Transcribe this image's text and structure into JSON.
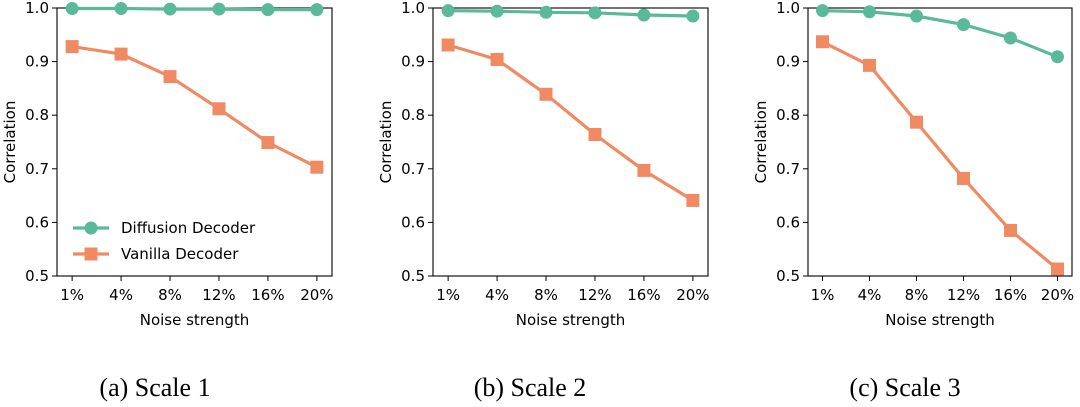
{
  "chart_data": [
    {
      "type": "line",
      "caption": "(a)  Scale 1",
      "xlabel": "Noise strength",
      "ylabel": "Correlation",
      "categories": [
        "1%",
        "4%",
        "8%",
        "12%",
        "16%",
        "20%"
      ],
      "ylim": [
        0.5,
        1.0
      ],
      "yticks": [
        "0.5",
        "0.6",
        "0.7",
        "0.8",
        "0.9",
        "1.0"
      ],
      "legend": "lower-left",
      "show_legend": true,
      "series": [
        {
          "name": "Diffusion Decoder",
          "color": "#5ab99b",
          "marker": "circle",
          "values": [
            0.999,
            0.999,
            0.998,
            0.998,
            0.997,
            0.997
          ]
        },
        {
          "name": "Vanilla Decoder",
          "color": "#f08a62",
          "marker": "square",
          "values": [
            0.928,
            0.914,
            0.872,
            0.812,
            0.749,
            0.703
          ]
        }
      ]
    },
    {
      "type": "line",
      "caption": "(b)  Scale 2",
      "xlabel": "Noise strength",
      "ylabel": "Correlation",
      "categories": [
        "1%",
        "4%",
        "8%",
        "12%",
        "16%",
        "20%"
      ],
      "ylim": [
        0.5,
        1.0
      ],
      "yticks": [
        "0.5",
        "0.6",
        "0.7",
        "0.8",
        "0.9",
        "1.0"
      ],
      "show_legend": false,
      "series": [
        {
          "name": "Diffusion Decoder",
          "color": "#5ab99b",
          "marker": "circle",
          "values": [
            0.995,
            0.994,
            0.992,
            0.991,
            0.987,
            0.985
          ]
        },
        {
          "name": "Vanilla Decoder",
          "color": "#f08a62",
          "marker": "square",
          "values": [
            0.931,
            0.904,
            0.839,
            0.764,
            0.697,
            0.641
          ]
        }
      ]
    },
    {
      "type": "line",
      "caption": "(c)  Scale 3",
      "xlabel": "Noise strength",
      "ylabel": "Correlation",
      "categories": [
        "1%",
        "4%",
        "8%",
        "12%",
        "16%",
        "20%"
      ],
      "ylim": [
        0.5,
        1.0
      ],
      "yticks": [
        "0.5",
        "0.6",
        "0.7",
        "0.8",
        "0.9",
        "1.0"
      ],
      "show_legend": false,
      "series": [
        {
          "name": "Diffusion Decoder",
          "color": "#5ab99b",
          "marker": "circle",
          "values": [
            0.995,
            0.993,
            0.985,
            0.969,
            0.944,
            0.909
          ]
        },
        {
          "name": "Vanilla Decoder",
          "color": "#f08a62",
          "marker": "square",
          "values": [
            0.937,
            0.893,
            0.787,
            0.682,
            0.585,
            0.513
          ]
        }
      ]
    }
  ]
}
